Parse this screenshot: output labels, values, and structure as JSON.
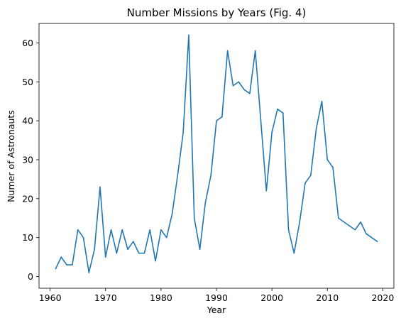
{
  "chart_data": {
    "type": "line",
    "title": "Number Missions by Years (Fig. 4)",
    "xlabel": "Year",
    "ylabel": "Numer of Astronauts",
    "xlim": [
      1958,
      2022
    ],
    "ylim": [
      -3,
      65
    ],
    "xticks": [
      1960,
      1970,
      1980,
      1990,
      2000,
      2010,
      2020
    ],
    "yticks": [
      0,
      10,
      20,
      30,
      40,
      50,
      60
    ],
    "grid": false,
    "line_color": "#1f77b4",
    "series": [
      {
        "x": [
          1961,
          1962,
          1963,
          1964,
          1965,
          1966,
          1967,
          1968,
          1969,
          1970,
          1971,
          1972,
          1973,
          1974,
          1975,
          1976,
          1977,
          1978,
          1979,
          1980,
          1981,
          1982,
          1983,
          1984,
          1985,
          1986,
          1987,
          1988,
          1989,
          1990,
          1991,
          1992,
          1993,
          1994,
          1995,
          1996,
          1997,
          1998,
          1999,
          2000,
          2001,
          2002,
          2003,
          2004,
          2005,
          2006,
          2007,
          2008,
          2009,
          2010,
          2011,
          2012,
          2015,
          2016,
          2017,
          2019
        ],
        "y": [
          2,
          5,
          3,
          3,
          12,
          10,
          1,
          7,
          23,
          5,
          12,
          6,
          12,
          7,
          9,
          6,
          6,
          12,
          4,
          12,
          10,
          16,
          26,
          37,
          62,
          15,
          7,
          19,
          26,
          40,
          41,
          58,
          49,
          50,
          48,
          47,
          58,
          40,
          22,
          37,
          43,
          42,
          12,
          6,
          14,
          24,
          26,
          38,
          45,
          30,
          28,
          15,
          12,
          14,
          11,
          9
        ]
      }
    ]
  }
}
